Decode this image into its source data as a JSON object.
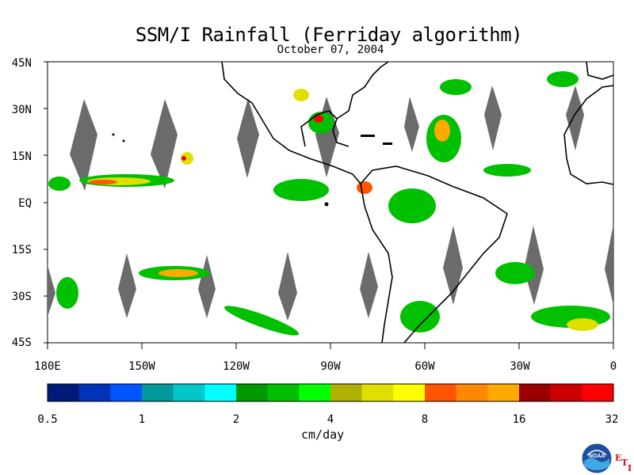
{
  "title": "SSM/I Rainfall (Ferriday algorithm)",
  "date": "October 07, 2004",
  "lat_ticks": [
    "45N",
    "30N",
    "15N",
    "EQ",
    "15S",
    "30S",
    "45S"
  ],
  "lon_ticks": [
    "180E",
    "150W",
    "120W",
    "90W",
    "60W",
    "30W",
    "0"
  ],
  "colorbar": {
    "colors": [
      "#001a7a",
      "#0033b8",
      "#0055ff",
      "#009999",
      "#00c8c8",
      "#00ffff",
      "#009900",
      "#00c000",
      "#00ff00",
      "#b0b000",
      "#e0e000",
      "#ffff00",
      "#ff5500",
      "#ff8800",
      "#ffaa00",
      "#990000",
      "#cc0000",
      "#ff0000"
    ],
    "tick_labels": [
      "0.5",
      "1",
      "2",
      "4",
      "8",
      "16",
      "32"
    ],
    "unit": "cm/day"
  },
  "logo": {
    "text": "NOAA",
    "letters": [
      "E",
      "T",
      "I"
    ]
  },
  "colors": {
    "missing_swath": "#6b6b6b",
    "coastline": "#000000"
  }
}
